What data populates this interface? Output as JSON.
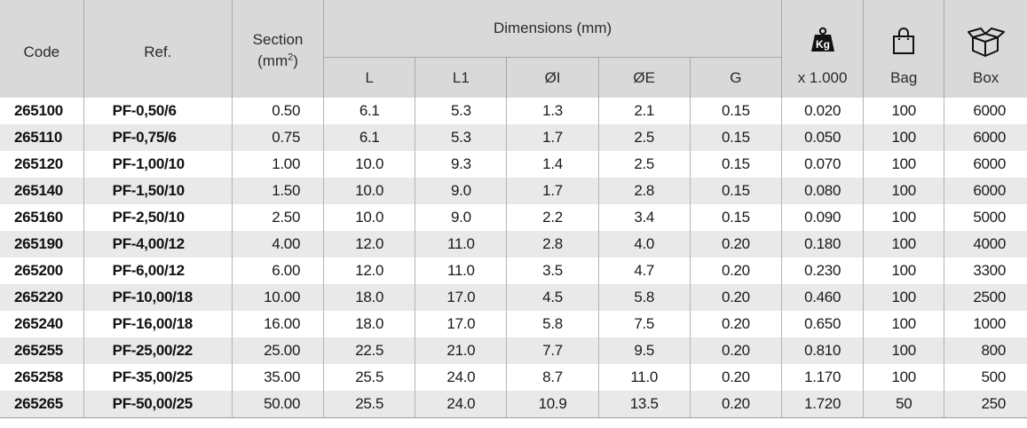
{
  "header": {
    "code": "Code",
    "ref": "Ref.",
    "section_line1": "Section",
    "section_line2": "(mm",
    "section_sup": "2",
    "section_close": ")",
    "dimensions": "Dimensions (mm)",
    "dims": [
      "L",
      "L1",
      "ØI",
      "ØE",
      "G"
    ],
    "weight_icon_text": "Kg",
    "weight": "x 1.000",
    "bag": "Bag",
    "box": "Box"
  },
  "icons": {
    "weight": "weight-kg-icon",
    "bag": "shopping-bag-icon",
    "box": "open-box-icon"
  },
  "rows": [
    [
      "265100",
      "PF-0,50/6",
      "0.50",
      "6.1",
      "5.3",
      "1.3",
      "2.1",
      "0.15",
      "0.020",
      "100",
      "6000"
    ],
    [
      "265110",
      "PF-0,75/6",
      "0.75",
      "6.1",
      "5.3",
      "1.7",
      "2.5",
      "0.15",
      "0.050",
      "100",
      "6000"
    ],
    [
      "265120",
      "PF-1,00/10",
      "1.00",
      "10.0",
      "9.3",
      "1.4",
      "2.5",
      "0.15",
      "0.070",
      "100",
      "6000"
    ],
    [
      "265140",
      "PF-1,50/10",
      "1.50",
      "10.0",
      "9.0",
      "1.7",
      "2.8",
      "0.15",
      "0.080",
      "100",
      "6000"
    ],
    [
      "265160",
      "PF-2,50/10",
      "2.50",
      "10.0",
      "9.0",
      "2.2",
      "3.4",
      "0.15",
      "0.090",
      "100",
      "5000"
    ],
    [
      "265190",
      "PF-4,00/12",
      "4.00",
      "12.0",
      "11.0",
      "2.8",
      "4.0",
      "0.20",
      "0.180",
      "100",
      "4000"
    ],
    [
      "265200",
      "PF-6,00/12",
      "6.00",
      "12.0",
      "11.0",
      "3.5",
      "4.7",
      "0.20",
      "0.230",
      "100",
      "3300"
    ],
    [
      "265220",
      "PF-10,00/18",
      "10.00",
      "18.0",
      "17.0",
      "4.5",
      "5.8",
      "0.20",
      "0.460",
      "100",
      "2500"
    ],
    [
      "265240",
      "PF-16,00/18",
      "16.00",
      "18.0",
      "17.0",
      "5.8",
      "7.5",
      "0.20",
      "0.650",
      "100",
      "1000"
    ],
    [
      "265255",
      "PF-25,00/22",
      "25.00",
      "22.5",
      "21.0",
      "7.7",
      "9.5",
      "0.20",
      "0.810",
      "100",
      "800"
    ],
    [
      "265258",
      "PF-35,00/25",
      "35.00",
      "25.5",
      "24.0",
      "8.7",
      "11.0",
      "0.20",
      "1.170",
      "100",
      "500"
    ],
    [
      "265265",
      "PF-50,00/25",
      "50.00",
      "25.5",
      "24.0",
      "10.9",
      "13.5",
      "0.20",
      "1.720",
      "50",
      "250"
    ]
  ],
  "colors": {
    "header_bg": "#d9d9d9",
    "stripe_bg": "#e9e9e9",
    "row_bg": "#ffffff"
  }
}
